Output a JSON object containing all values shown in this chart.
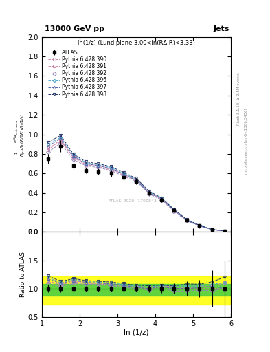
{
  "title_left": "13000 GeV pp",
  "title_right": "Jets",
  "plot_title": "ln(1/z) (Lund plane 3.00<ln(RΔ R)<3.33)",
  "xlabel": "ln (1/z)",
  "ylabel_ratio": "Ratio to ATLAS",
  "right_label_top": "Rivet 3.1.10, ≥ 2.5M events",
  "right_label_bot": "mcplots.cern.ch [arXiv:1306.3436]",
  "watermark": "ATLAS_2020_I1790843",
  "xlim": [
    1.0,
    6.0
  ],
  "ylim_main": [
    0.0,
    2.0
  ],
  "ylim_ratio": [
    0.5,
    2.0
  ],
  "x_data": [
    1.167,
    1.5,
    1.833,
    2.167,
    2.5,
    2.833,
    3.167,
    3.5,
    3.833,
    4.167,
    4.5,
    4.833,
    5.167,
    5.5,
    5.833
  ],
  "atlas_y": [
    0.75,
    0.88,
    0.68,
    0.63,
    0.62,
    0.6,
    0.56,
    0.52,
    0.4,
    0.33,
    0.22,
    0.12,
    0.065,
    0.025,
    0.01
  ],
  "atlas_yerr": [
    0.05,
    0.06,
    0.04,
    0.03,
    0.03,
    0.03,
    0.03,
    0.03,
    0.025,
    0.025,
    0.02,
    0.015,
    0.01,
    0.008,
    0.005
  ],
  "pythia_390_y": [
    0.84,
    0.95,
    0.76,
    0.69,
    0.67,
    0.64,
    0.58,
    0.53,
    0.4,
    0.34,
    0.22,
    0.12,
    0.065,
    0.025,
    0.01
  ],
  "pythia_391_y": [
    0.86,
    0.93,
    0.77,
    0.7,
    0.68,
    0.65,
    0.59,
    0.54,
    0.41,
    0.34,
    0.23,
    0.12,
    0.068,
    0.026,
    0.011
  ],
  "pythia_392_y": [
    0.82,
    0.91,
    0.74,
    0.68,
    0.66,
    0.63,
    0.57,
    0.52,
    0.39,
    0.33,
    0.21,
    0.115,
    0.063,
    0.024,
    0.01
  ],
  "pythia_396_y": [
    0.9,
    0.97,
    0.79,
    0.71,
    0.69,
    0.66,
    0.6,
    0.54,
    0.41,
    0.35,
    0.23,
    0.125,
    0.068,
    0.027,
    0.011
  ],
  "pythia_397_y": [
    0.88,
    0.96,
    0.78,
    0.7,
    0.68,
    0.65,
    0.59,
    0.53,
    0.4,
    0.34,
    0.22,
    0.12,
    0.066,
    0.026,
    0.01
  ],
  "pythia_398_y": [
    0.92,
    0.99,
    0.8,
    0.72,
    0.7,
    0.67,
    0.61,
    0.55,
    0.42,
    0.35,
    0.23,
    0.13,
    0.07,
    0.028,
    0.012
  ],
  "series_colors": [
    "#cc88aa",
    "#cc88aa",
    "#9988bb",
    "#55aacc",
    "#5566aa",
    "#223366"
  ],
  "series_markers": [
    "o",
    "s",
    "D",
    "P",
    "^",
    "v"
  ],
  "series_labels": [
    "Pythia 6.428 390",
    "Pythia 6.428 391",
    "Pythia 6.428 392",
    "Pythia 6.428 396",
    "Pythia 6.428 397",
    "Pythia 6.428 398"
  ],
  "band_green_lo": 0.87,
  "band_green_hi": 1.08,
  "band_yellow_lo": 0.72,
  "band_yellow_hi": 1.22,
  "x_ticks": [
    1,
    2,
    3,
    4,
    5,
    6
  ],
  "yticks_main": [
    0.0,
    0.2,
    0.4,
    0.6,
    0.8,
    1.0,
    1.2,
    1.4,
    1.6,
    1.8,
    2.0
  ],
  "yticks_ratio": [
    0.5,
    1.0,
    1.5,
    2.0
  ]
}
